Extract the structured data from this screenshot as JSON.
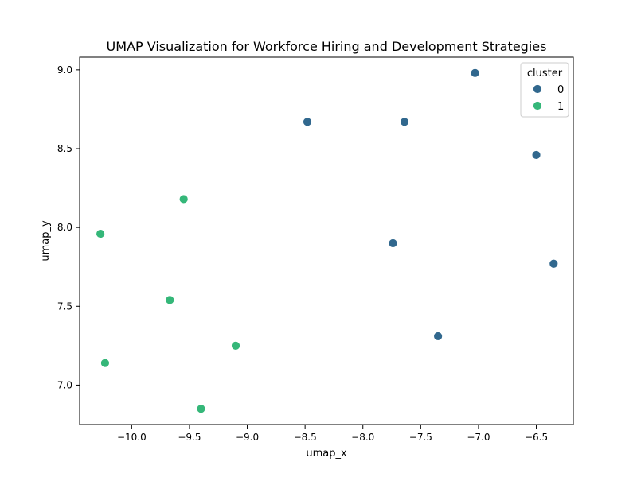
{
  "chart_data": {
    "type": "scatter",
    "title": "UMAP Visualization for Workforce Hiring and Development Strategies",
    "xlabel": "umap_x",
    "ylabel": "umap_y",
    "xlim": [
      -10.45,
      -6.18
    ],
    "ylim": [
      6.75,
      9.08
    ],
    "xticks": [
      -10.0,
      -9.5,
      -9.0,
      -8.5,
      -8.0,
      -7.5,
      -7.0,
      -6.5
    ],
    "xtick_labels": [
      "−10.0",
      "−9.5",
      "−9.0",
      "−8.5",
      "−8.0",
      "−7.5",
      "−7.0",
      "−6.5"
    ],
    "yticks": [
      7.0,
      7.5,
      8.0,
      8.5,
      9.0
    ],
    "ytick_labels": [
      "7.0",
      "7.5",
      "8.0",
      "8.5",
      "9.0"
    ],
    "grid": false,
    "legend": {
      "title": "cluster",
      "placement": "top-right"
    },
    "series": [
      {
        "name": "0",
        "color": "#31688e",
        "points": [
          {
            "x": -7.03,
            "y": 8.98
          },
          {
            "x": -8.48,
            "y": 8.67
          },
          {
            "x": -7.64,
            "y": 8.67
          },
          {
            "x": -6.5,
            "y": 8.46
          },
          {
            "x": -7.74,
            "y": 7.9
          },
          {
            "x": -6.35,
            "y": 7.77
          },
          {
            "x": -7.35,
            "y": 7.31
          }
        ]
      },
      {
        "name": "1",
        "color": "#35b779",
        "points": [
          {
            "x": -9.55,
            "y": 8.18
          },
          {
            "x": -10.27,
            "y": 7.96
          },
          {
            "x": -9.67,
            "y": 7.54
          },
          {
            "x": -9.1,
            "y": 7.25
          },
          {
            "x": -10.23,
            "y": 7.14
          },
          {
            "x": -9.4,
            "y": 6.85
          }
        ]
      }
    ]
  }
}
